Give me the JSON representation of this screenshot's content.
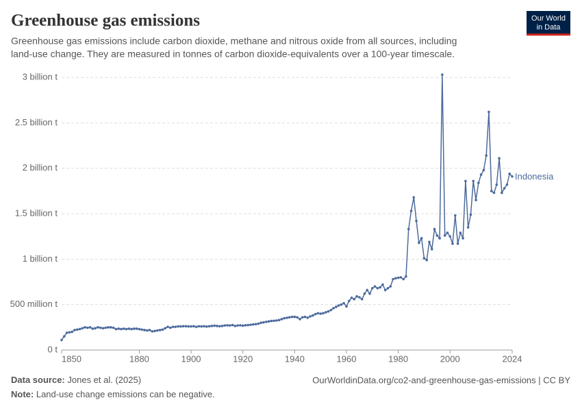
{
  "chart_data": {
    "type": "line",
    "title": "Greenhouse gas emissions",
    "subtitle": [
      "Greenhouse gas emissions include carbon dioxide, methane and nitrous oxide from all sources, including",
      "land-use change. They are measured in tonnes of carbon dioxide-equivalents over a 100-year timescale."
    ],
    "x": [
      1850,
      1851,
      1852,
      1853,
      1854,
      1855,
      1856,
      1857,
      1858,
      1859,
      1860,
      1861,
      1862,
      1863,
      1864,
      1865,
      1866,
      1867,
      1868,
      1869,
      1870,
      1871,
      1872,
      1873,
      1874,
      1875,
      1876,
      1877,
      1878,
      1879,
      1880,
      1881,
      1882,
      1883,
      1884,
      1885,
      1886,
      1887,
      1888,
      1889,
      1890,
      1891,
      1892,
      1893,
      1894,
      1895,
      1896,
      1897,
      1898,
      1899,
      1900,
      1901,
      1902,
      1903,
      1904,
      1905,
      1906,
      1907,
      1908,
      1909,
      1910,
      1911,
      1912,
      1913,
      1914,
      1915,
      1916,
      1917,
      1918,
      1919,
      1920,
      1921,
      1922,
      1923,
      1924,
      1925,
      1926,
      1927,
      1928,
      1929,
      1930,
      1931,
      1932,
      1933,
      1934,
      1935,
      1936,
      1937,
      1938,
      1939,
      1940,
      1941,
      1942,
      1943,
      1944,
      1945,
      1946,
      1947,
      1948,
      1949,
      1950,
      1951,
      1952,
      1953,
      1954,
      1955,
      1956,
      1957,
      1958,
      1959,
      1960,
      1961,
      1962,
      1963,
      1964,
      1965,
      1966,
      1967,
      1968,
      1969,
      1970,
      1971,
      1972,
      1973,
      1974,
      1975,
      1976,
      1977,
      1978,
      1979,
      1980,
      1981,
      1982,
      1983,
      1984,
      1985,
      1986,
      1987,
      1988,
      1989,
      1990,
      1991,
      1992,
      1993,
      1994,
      1995,
      1996,
      1997,
      1998,
      1999,
      2000,
      2001,
      2002,
      2003,
      2004,
      2005,
      2006,
      2007,
      2008,
      2009,
      2010,
      2011,
      2012,
      2013,
      2014,
      2015,
      2016,
      2017,
      2018,
      2019,
      2020,
      2021,
      2022,
      2023,
      2024
    ],
    "series": [
      {
        "name": "Indonesia",
        "color": "#4c6a9c",
        "values": [
          110000000.0,
          150000000.0,
          190000000.0,
          195000000.0,
          200000000.0,
          220000000.0,
          225000000.0,
          230000000.0,
          240000000.0,
          250000000.0,
          245000000.0,
          250000000.0,
          235000000.0,
          240000000.0,
          250000000.0,
          245000000.0,
          240000000.0,
          245000000.0,
          250000000.0,
          250000000.0,
          245000000.0,
          230000000.0,
          235000000.0,
          230000000.0,
          235000000.0,
          230000000.0,
          235000000.0,
          230000000.0,
          235000000.0,
          235000000.0,
          230000000.0,
          225000000.0,
          220000000.0,
          215000000.0,
          220000000.0,
          205000000.0,
          210000000.0,
          215000000.0,
          220000000.0,
          225000000.0,
          240000000.0,
          255000000.0,
          245000000.0,
          255000000.0,
          255000000.0,
          260000000.0,
          260000000.0,
          262000000.0,
          262000000.0,
          260000000.0,
          260000000.0,
          262000000.0,
          255000000.0,
          262000000.0,
          260000000.0,
          262000000.0,
          258000000.0,
          262000000.0,
          265000000.0,
          268000000.0,
          265000000.0,
          262000000.0,
          265000000.0,
          270000000.0,
          272000000.0,
          270000000.0,
          275000000.0,
          265000000.0,
          270000000.0,
          272000000.0,
          268000000.0,
          272000000.0,
          275000000.0,
          278000000.0,
          282000000.0,
          285000000.0,
          290000000.0,
          300000000.0,
          305000000.0,
          310000000.0,
          315000000.0,
          320000000.0,
          322000000.0,
          325000000.0,
          330000000.0,
          340000000.0,
          350000000.0,
          355000000.0,
          360000000.0,
          365000000.0,
          365000000.0,
          360000000.0,
          340000000.0,
          360000000.0,
          365000000.0,
          355000000.0,
          370000000.0,
          380000000.0,
          395000000.0,
          405000000.0,
          400000000.0,
          405000000.0,
          415000000.0,
          425000000.0,
          440000000.0,
          460000000.0,
          475000000.0,
          490000000.0,
          500000000.0,
          515000000.0,
          480000000.0,
          540000000.0,
          575000000.0,
          560000000.0,
          590000000.0,
          580000000.0,
          560000000.0,
          620000000.0,
          660000000.0,
          620000000.0,
          680000000.0,
          700000000.0,
          680000000.0,
          690000000.0,
          720000000.0,
          660000000.0,
          680000000.0,
          700000000.0,
          780000000.0,
          790000000.0,
          795000000.0,
          800000000.0,
          780000000.0,
          810000000.0,
          1330000000.0,
          1530000000.0,
          1680000000.0,
          1420000000.0,
          1180000000.0,
          1230000000.0,
          1010000000.0,
          990000000.0,
          1190000000.0,
          1110000000.0,
          1330000000.0,
          1260000000.0,
          1230000000.0,
          3030000000.0,
          1260000000.0,
          1290000000.0,
          1250000000.0,
          1170000000.0,
          1480000000.0,
          1170000000.0,
          1290000000.0,
          1230000000.0,
          1860000000.0,
          1350000000.0,
          1490000000.0,
          1860000000.0,
          1650000000.0,
          1840000000.0,
          1930000000.0,
          1980000000.0,
          2140000000.0,
          2620000000.0,
          1750000000.0,
          1730000000.0,
          1820000000.0,
          2110000000.0,
          1730000000.0,
          1780000000.0,
          1820000000.0,
          1940000000.0,
          1910000000.0
        ]
      }
    ],
    "xlim": [
      1850,
      2024
    ],
    "xticks": [
      1850,
      1880,
      1900,
      1920,
      1940,
      1960,
      1980,
      2000,
      2024
    ],
    "ylim": [
      0,
      3000000000
    ],
    "yticks": [
      {
        "value": 0,
        "label": "0 t"
      },
      {
        "value": 500000000,
        "label": "500 million t"
      },
      {
        "value": 1000000000,
        "label": "1 billion t"
      },
      {
        "value": 1500000000,
        "label": "1.5 billion t"
      },
      {
        "value": 2000000000,
        "label": "2 billion t"
      },
      {
        "value": 2500000000,
        "label": "2.5 billion t"
      },
      {
        "value": 3000000000,
        "label": "3 billion t"
      }
    ],
    "grid": true,
    "logo": [
      "Our World",
      "in Data"
    ],
    "source_label": "Data source:",
    "source": "Jones et al. (2025)",
    "url": "OurWorldinData.org/co2-and-greenhouse-gas-emissions | CC BY",
    "note_label": "Note:",
    "note": "Land-use change emissions can be negative."
  }
}
